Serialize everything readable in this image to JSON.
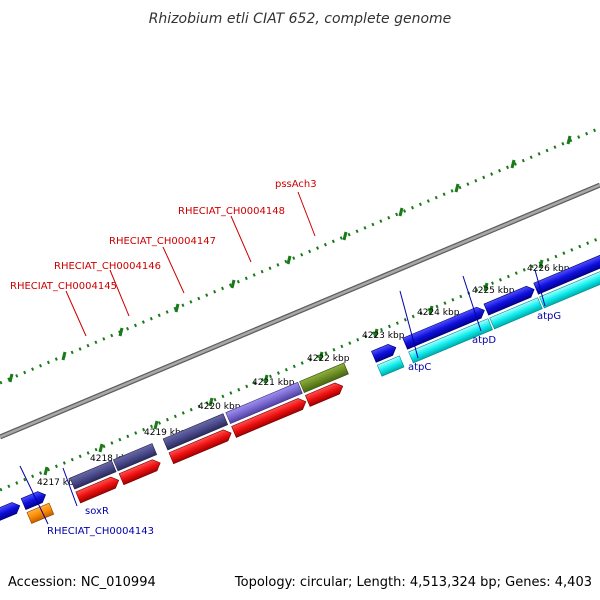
{
  "title": "Rhizobium etli CIAT 652, complete genome",
  "footer": {
    "accession": "Accession: NC_010994",
    "topology": "Topology: circular; Length: 4,513,324 bp; Genes: 4,403"
  },
  "scale_labels": [
    "4217 kbp",
    "4218 kbp",
    "4219 kbp",
    "4220 kbp",
    "4221 kbp",
    "4222 kbp",
    "4223 kbp",
    "4224 kbp",
    "4225 kbp",
    "4226 kbp"
  ],
  "gene_labels": [
    {
      "text": "RHECIAT_CH0004145",
      "color": "#cc0000"
    },
    {
      "text": "RHECIAT_CH0004146",
      "color": "#cc0000"
    },
    {
      "text": "RHECIAT_CH0004147",
      "color": "#cc0000"
    },
    {
      "text": "RHECIAT_CH0004148",
      "color": "#cc0000"
    },
    {
      "text": "pssAch3",
      "color": "#cc0000"
    },
    {
      "text": "atpC",
      "color": "#0000aa"
    },
    {
      "text": "atpD",
      "color": "#0000aa"
    },
    {
      "text": "atpG",
      "color": "#0000aa"
    },
    {
      "text": "soxR",
      "color": "#0000aa"
    },
    {
      "text": "RHECIAT_CH0004143",
      "color": "#0000aa"
    }
  ],
  "colors": {
    "backbone": "#8c8c8c",
    "ticks": "#1a7a1a",
    "red_gene": "#ee1111",
    "purple_gene": "#4a4a8c",
    "lavender_gene": "#7a6ad0",
    "olive_gene": "#6b8e23",
    "blue_gene": "#1010dd",
    "cyan_gene": "#11eeee",
    "orange_gene": "#ff8c00"
  }
}
